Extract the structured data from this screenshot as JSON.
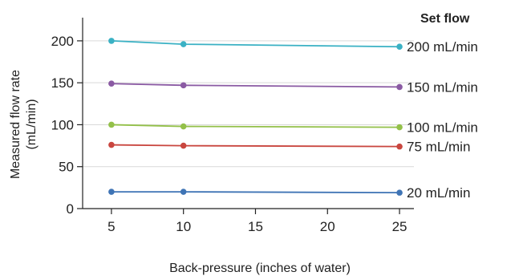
{
  "chart_data": {
    "type": "line",
    "title": "",
    "xlabel": "Back-pressure (inches of water)",
    "ylabel_lines": [
      "Measured flow rate",
      "(mL/min)"
    ],
    "legend_title": "Set flow",
    "legend_placement": "right, labels at line ends",
    "x": [
      5,
      10,
      25
    ],
    "xlim": [
      3,
      26
    ],
    "ylim": [
      0,
      220
    ],
    "xticks": [
      "5",
      "10",
      "15",
      "20",
      "25"
    ],
    "yticks": [
      "0",
      "50",
      "100",
      "150",
      "200"
    ],
    "grid": "horizontal",
    "series": [
      {
        "name": "200 mL/min",
        "color": "#3ab1c4",
        "values": [
          200,
          196,
          193
        ]
      },
      {
        "name": "150 mL/min",
        "color": "#8a5aa3",
        "values": [
          149,
          147,
          145
        ]
      },
      {
        "name": "100 mL/min",
        "color": "#93c049",
        "values": [
          100,
          98,
          97
        ]
      },
      {
        "name": "75 mL/min",
        "color": "#c9463f",
        "values": [
          76,
          75,
          74
        ]
      },
      {
        "name": "20 mL/min",
        "color": "#3f74b5",
        "values": [
          20,
          20,
          19
        ]
      }
    ]
  }
}
